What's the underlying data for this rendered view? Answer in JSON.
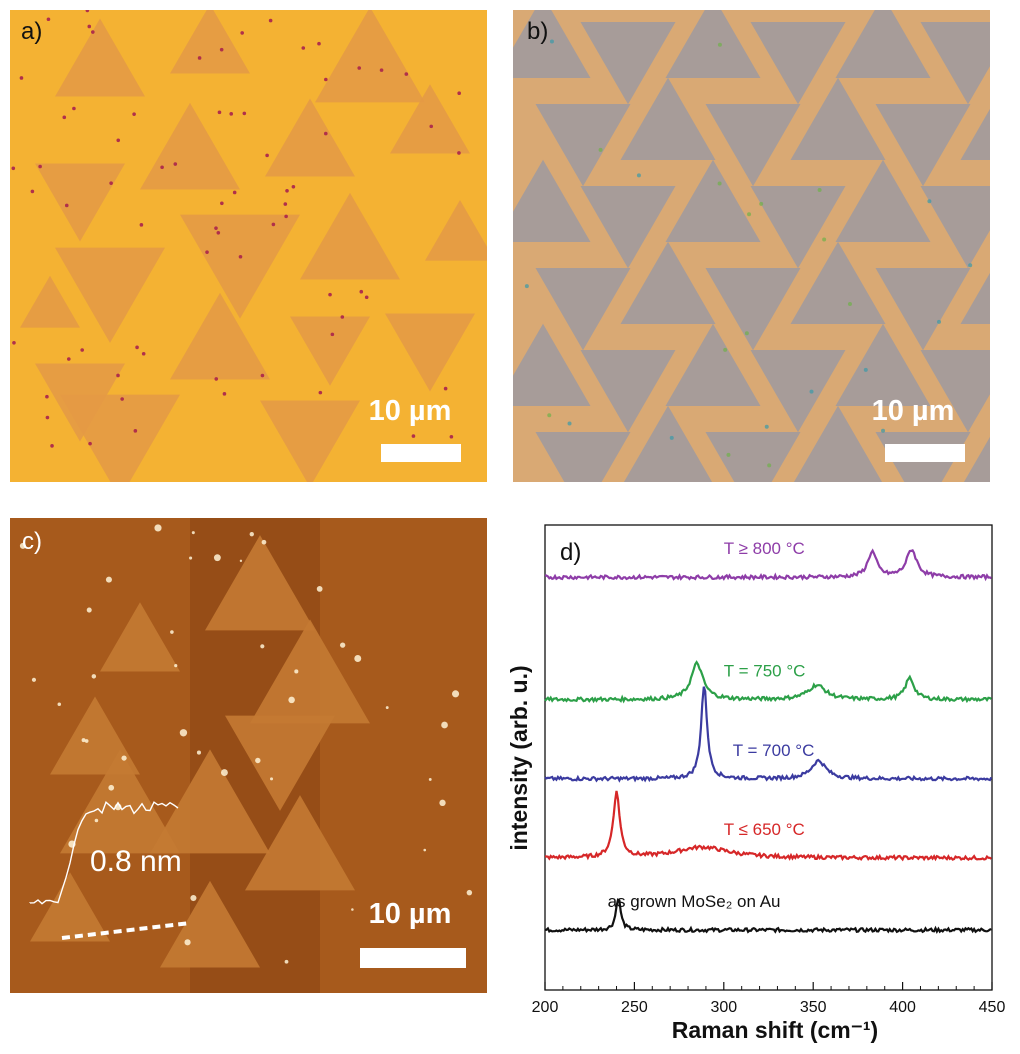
{
  "panels": {
    "a": {
      "letter": "a)",
      "scale_label": "10 µm"
    },
    "b": {
      "letter": "b)",
      "scale_label": "10 µm"
    },
    "c": {
      "letter": "c)",
      "scale_label": "10 µm",
      "profile_label": "0.8 nm"
    },
    "d": {
      "letter": "d)"
    }
  },
  "colors": {
    "optical_a_bg": "#F4B233",
    "optical_a_flake": "#E49A45",
    "optical_b_bg": "#D9A974",
    "optical_b_flake": "#9E9AA0",
    "afm_bg": "#A75A1C",
    "afm_flake": "#C47A33",
    "afm_dark": "#8B4514"
  },
  "chart_data": {
    "type": "line",
    "xlabel": "Raman shift (cm⁻¹)",
    "ylabel": "intensity (arb. u.)",
    "xlim": [
      200,
      450
    ],
    "x_ticks": [
      200,
      250,
      300,
      350,
      400,
      450
    ],
    "y_ticks_shown": false,
    "series": [
      {
        "name": "as grown MoSe₂ on Au",
        "color": "#111111",
        "baseline": 0.0,
        "peaks": [
          {
            "x": 241,
            "height": 0.45,
            "width": 1.6
          }
        ]
      },
      {
        "name": "T ≤ 650 °C",
        "color": "#D62728",
        "baseline": 1.0,
        "peaks": [
          {
            "x": 240,
            "height": 0.9,
            "width": 2.2
          },
          {
            "x": 288,
            "height": 0.15,
            "width": 18
          }
        ]
      },
      {
        "name": "T = 700 °C",
        "color": "#3B3BA0",
        "baseline": 2.1,
        "peaks": [
          {
            "x": 289,
            "height": 1.3,
            "width": 2.0
          },
          {
            "x": 353,
            "height": 0.25,
            "width": 5
          }
        ]
      },
      {
        "name": "T = 750 °C",
        "color": "#2CA048",
        "baseline": 3.2,
        "peaks": [
          {
            "x": 285,
            "height": 0.5,
            "width": 4
          },
          {
            "x": 352,
            "height": 0.2,
            "width": 6
          },
          {
            "x": 404,
            "height": 0.3,
            "width": 3
          }
        ]
      },
      {
        "name": "T ≥ 800 °C",
        "color": "#8E3DA8",
        "baseline": 4.9,
        "peaks": [
          {
            "x": 383,
            "height": 0.35,
            "width": 3
          },
          {
            "x": 405,
            "height": 0.38,
            "width": 3.5
          }
        ]
      }
    ],
    "labels": [
      {
        "text": "T ≥ 800 °C",
        "x": 300,
        "series": 4
      },
      {
        "text": "T = 750 °C",
        "x": 300,
        "series": 3
      },
      {
        "text": "T = 700 °C",
        "x": 305,
        "series": 2
      },
      {
        "text": "T ≤ 650 °C",
        "x": 300,
        "series": 1
      },
      {
        "text": "as grown MoSe₂ on Au",
        "x": 235,
        "series": 0
      }
    ]
  }
}
